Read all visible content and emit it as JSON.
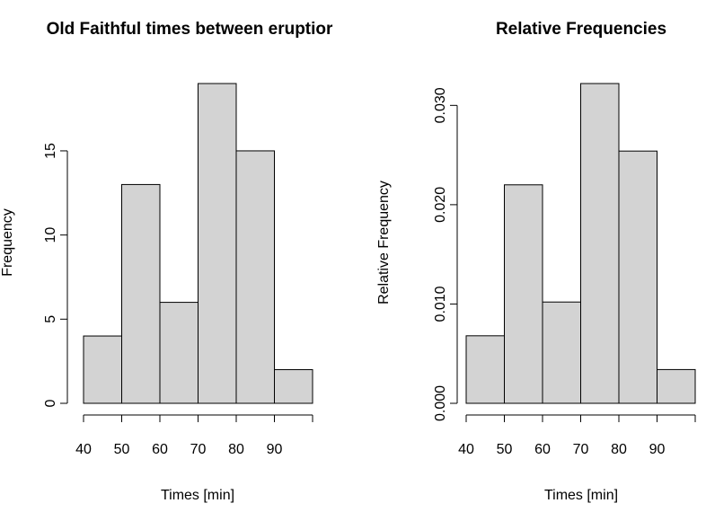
{
  "chart_data": [
    {
      "type": "bar",
      "title": "Old Faithful times between eruptior",
      "xlabel": "Times [min]",
      "ylabel": "Frequency",
      "bins": [
        [
          40,
          50
        ],
        [
          50,
          60
        ],
        [
          60,
          70
        ],
        [
          70,
          80
        ],
        [
          80,
          90
        ],
        [
          90,
          100
        ]
      ],
      "values": [
        4,
        13,
        6,
        19,
        15,
        2
      ],
      "xticks": [
        "40",
        "50",
        "60",
        "70",
        "80",
        "90"
      ],
      "yticks": [
        "0",
        "5",
        "10",
        "15"
      ],
      "ylim": [
        0,
        19
      ],
      "bar_color": "#d3d3d3",
      "grid": false
    },
    {
      "type": "bar",
      "title": "Relative Frequencies",
      "xlabel": "Times [min]",
      "ylabel": "Relative Frequency",
      "bins": [
        [
          40,
          50
        ],
        [
          50,
          60
        ],
        [
          60,
          70
        ],
        [
          70,
          80
        ],
        [
          80,
          90
        ],
        [
          90,
          100
        ]
      ],
      "values": [
        0.0068,
        0.022,
        0.0102,
        0.0322,
        0.0254,
        0.0034
      ],
      "xticks": [
        "40",
        "50",
        "60",
        "70",
        "80",
        "90"
      ],
      "yticks": [
        "0.000",
        "0.010",
        "0.020",
        "0.030"
      ],
      "ylim": [
        0,
        0.0322
      ],
      "bar_color": "#d3d3d3",
      "grid": false
    }
  ]
}
